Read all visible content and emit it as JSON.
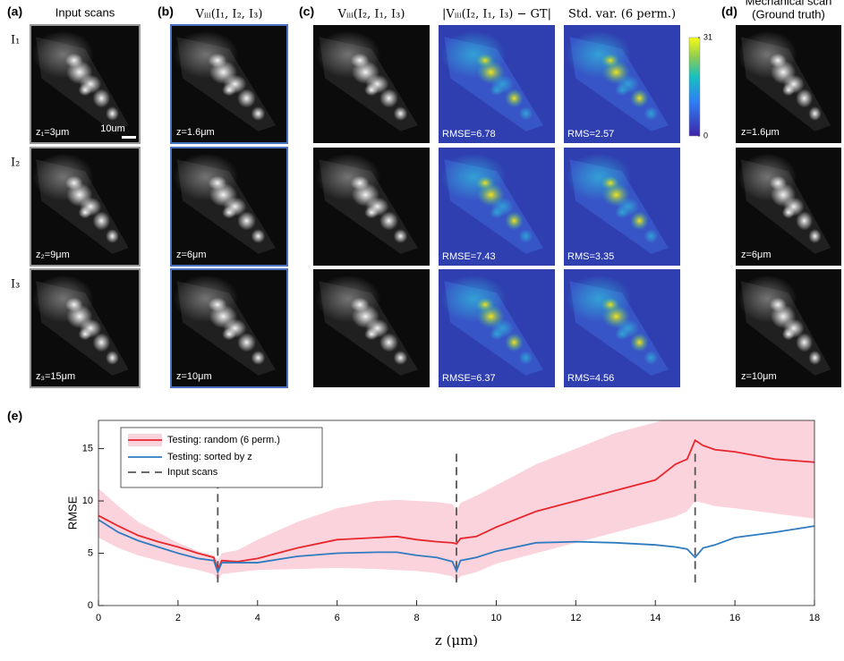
{
  "panels": {
    "a": {
      "label": "(a)",
      "title": "Input scans",
      "row_labels": [
        "I₁",
        "I₂",
        "I₃"
      ],
      "image_labels": [
        "z₁=3μm",
        "z₂=9μm",
        "z₃=15μm"
      ],
      "scale_bar": "10um"
    },
    "b": {
      "label": "(b)",
      "title": "Vᵢᵢᵢ(I₁, I₂, I₃)",
      "image_labels": [
        "z=1.6μm",
        "z=6μm",
        "z=10μm"
      ]
    },
    "c": {
      "label": "(c)",
      "titles": [
        "Vᵢᵢᵢ(I₂, I₁, I₃)",
        "|Vᵢᵢᵢ(I₂, I₁, I₃) − GT|",
        "Std. var. (6 perm.)"
      ],
      "error_labels": [
        "RMSE=6.78",
        "RMSE=7.43",
        "RMSE=6.37"
      ],
      "std_labels": [
        "RMS=2.57",
        "RMS=3.35",
        "RMS=4.56"
      ],
      "colorbar_lim": [
        0,
        31
      ],
      "colorbar_ticks": [
        31,
        0
      ]
    },
    "d": {
      "label": "(d)",
      "title_lines": [
        "Mechanical scan",
        "(Ground truth)"
      ],
      "image_labels": [
        "z=1.6μm",
        "z=6μm",
        "z=10μm"
      ]
    }
  },
  "chart_data": {
    "type": "line",
    "label": "(e)",
    "x_label": "z (μm)",
    "y_label": "RMSE",
    "xlim": [
      0,
      18
    ],
    "ylim": [
      0,
      17.7
    ],
    "xticks": [
      0,
      2,
      4,
      6,
      8,
      10,
      12,
      14,
      16,
      18
    ],
    "yticks": [
      0,
      5,
      10,
      15
    ],
    "x": [
      0,
      0.5,
      1,
      1.5,
      2,
      2.5,
      2.9,
      3,
      3.1,
      3.5,
      4,
      5,
      6,
      7,
      7.5,
      8,
      8.5,
      8.9,
      9,
      9.1,
      9.5,
      10,
      11,
      12,
      13,
      14,
      14.5,
      14.8,
      15,
      15.2,
      15.5,
      16,
      17,
      18
    ],
    "series": [
      {
        "name": "Testing: random (6 perm.)",
        "color": "#e8262b",
        "band_color": "#fbd3dd",
        "values": [
          8.6,
          7.6,
          6.7,
          6.1,
          5.6,
          5.0,
          4.6,
          3.4,
          4.3,
          4.2,
          4.5,
          5.5,
          6.3,
          6.5,
          6.6,
          6.3,
          6.1,
          6.0,
          5.9,
          6.4,
          6.6,
          7.5,
          9.0,
          10.0,
          11.0,
          12.0,
          13.5,
          14.0,
          15.8,
          15.3,
          14.9,
          14.7,
          14.0,
          13.7
        ],
        "band_upper": [
          11.2,
          9.5,
          8.0,
          7.0,
          6.0,
          5.2,
          4.8,
          4.3,
          5.0,
          5.3,
          6.3,
          8.0,
          9.3,
          10.0,
          10.1,
          10.0,
          9.9,
          9.7,
          9.0,
          9.8,
          10.5,
          11.5,
          13.5,
          15.0,
          16.5,
          17.5,
          18.2,
          18.6,
          19.0,
          19.2,
          19.5,
          20.0,
          20.0,
          20.0
        ],
        "band_lower": [
          6.5,
          5.5,
          4.8,
          4.3,
          3.8,
          3.4,
          3.0,
          2.4,
          3.0,
          3.2,
          3.4,
          3.5,
          3.6,
          3.5,
          3.4,
          3.3,
          3.1,
          2.8,
          2.3,
          2.8,
          3.2,
          4.0,
          5.0,
          6.0,
          7.0,
          8.0,
          8.5,
          9.0,
          10.0,
          9.8,
          9.5,
          9.3,
          8.8,
          8.3
        ]
      },
      {
        "name": "Testing: sorted by z",
        "color": "#2f7bbf",
        "values": [
          8.2,
          7.0,
          6.2,
          5.6,
          5.0,
          4.5,
          4.3,
          3.2,
          4.1,
          4.1,
          4.1,
          4.7,
          5.0,
          5.1,
          5.1,
          4.8,
          4.6,
          4.2,
          3.3,
          4.3,
          4.6,
          5.2,
          6.0,
          6.1,
          6.0,
          5.8,
          5.6,
          5.4,
          4.6,
          5.5,
          5.8,
          6.5,
          7.0,
          7.6
        ]
      }
    ],
    "vlines": {
      "name": "Input scans",
      "color": "#555555",
      "x": [
        3,
        9,
        15
      ]
    }
  }
}
